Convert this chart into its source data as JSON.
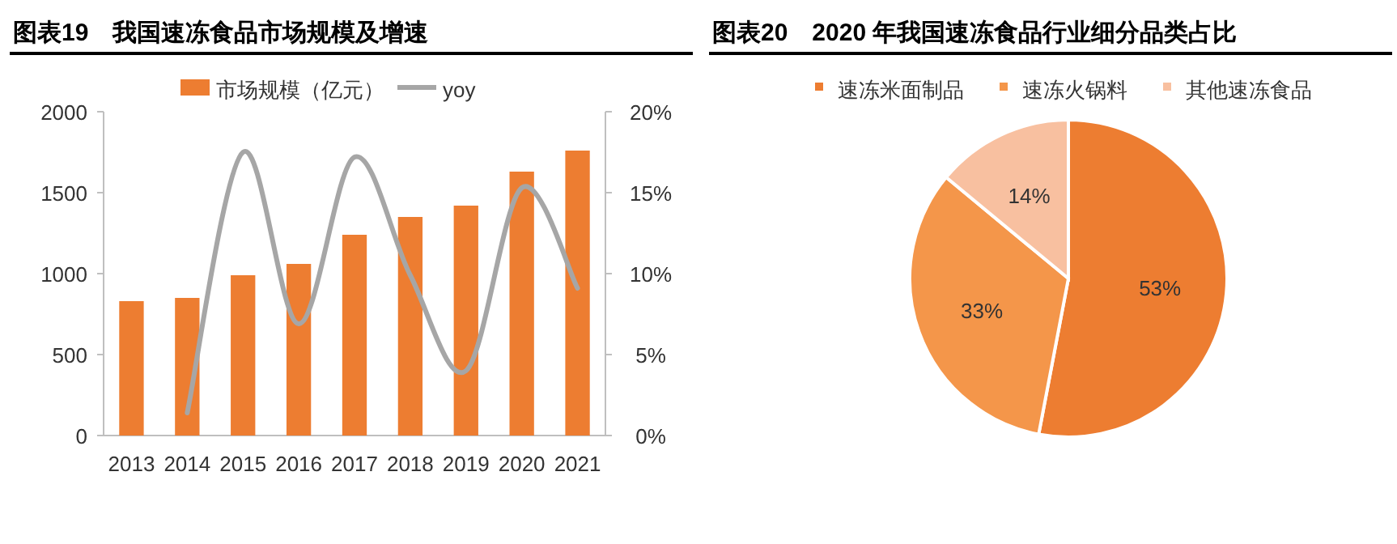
{
  "chart_data": [
    {
      "type": "bar",
      "title": "图表19　我国速冻食品市场规模及增速",
      "categories": [
        "2013",
        "2014",
        "2015",
        "2016",
        "2017",
        "2018",
        "2019",
        "2020",
        "2021"
      ],
      "series": [
        {
          "name": "市场规模（亿元）",
          "type": "bar",
          "color": "#ed7d31",
          "values": [
            830,
            850,
            990,
            1060,
            1240,
            1350,
            1420,
            1630,
            1760
          ]
        },
        {
          "name": "yoy",
          "type": "line",
          "axis": "y2",
          "color": "#a6a6a6",
          "values": [
            null,
            1.4,
            17.5,
            6.9,
            17.2,
            9.9,
            4.0,
            15.3,
            9.1
          ]
        }
      ],
      "ylim": [
        0,
        2000
      ],
      "yticks": [
        0,
        500,
        1000,
        1500,
        2000
      ],
      "y2lim": [
        0,
        20
      ],
      "y2ticks": [
        {
          "value": 0,
          "label": "0%"
        },
        {
          "value": 5,
          "label": "5%"
        },
        {
          "value": 10,
          "label": "10%"
        },
        {
          "value": 15,
          "label": "15%"
        },
        {
          "value": 20,
          "label": "20%"
        }
      ],
      "legend": "top",
      "grid": false
    },
    {
      "type": "pie",
      "title": "图表20　2020 年我国速冻食品行业细分品类占比",
      "categories": [
        "速冻米面制品",
        "速冻火锅料",
        "其他速冻食品"
      ],
      "values": [
        53,
        33,
        14
      ],
      "colors": [
        "#ed7d31",
        "#f4964a",
        "#f8c0a0"
      ],
      "value_labels": [
        "53%",
        "33%",
        "14%"
      ],
      "legend": "top"
    }
  ]
}
